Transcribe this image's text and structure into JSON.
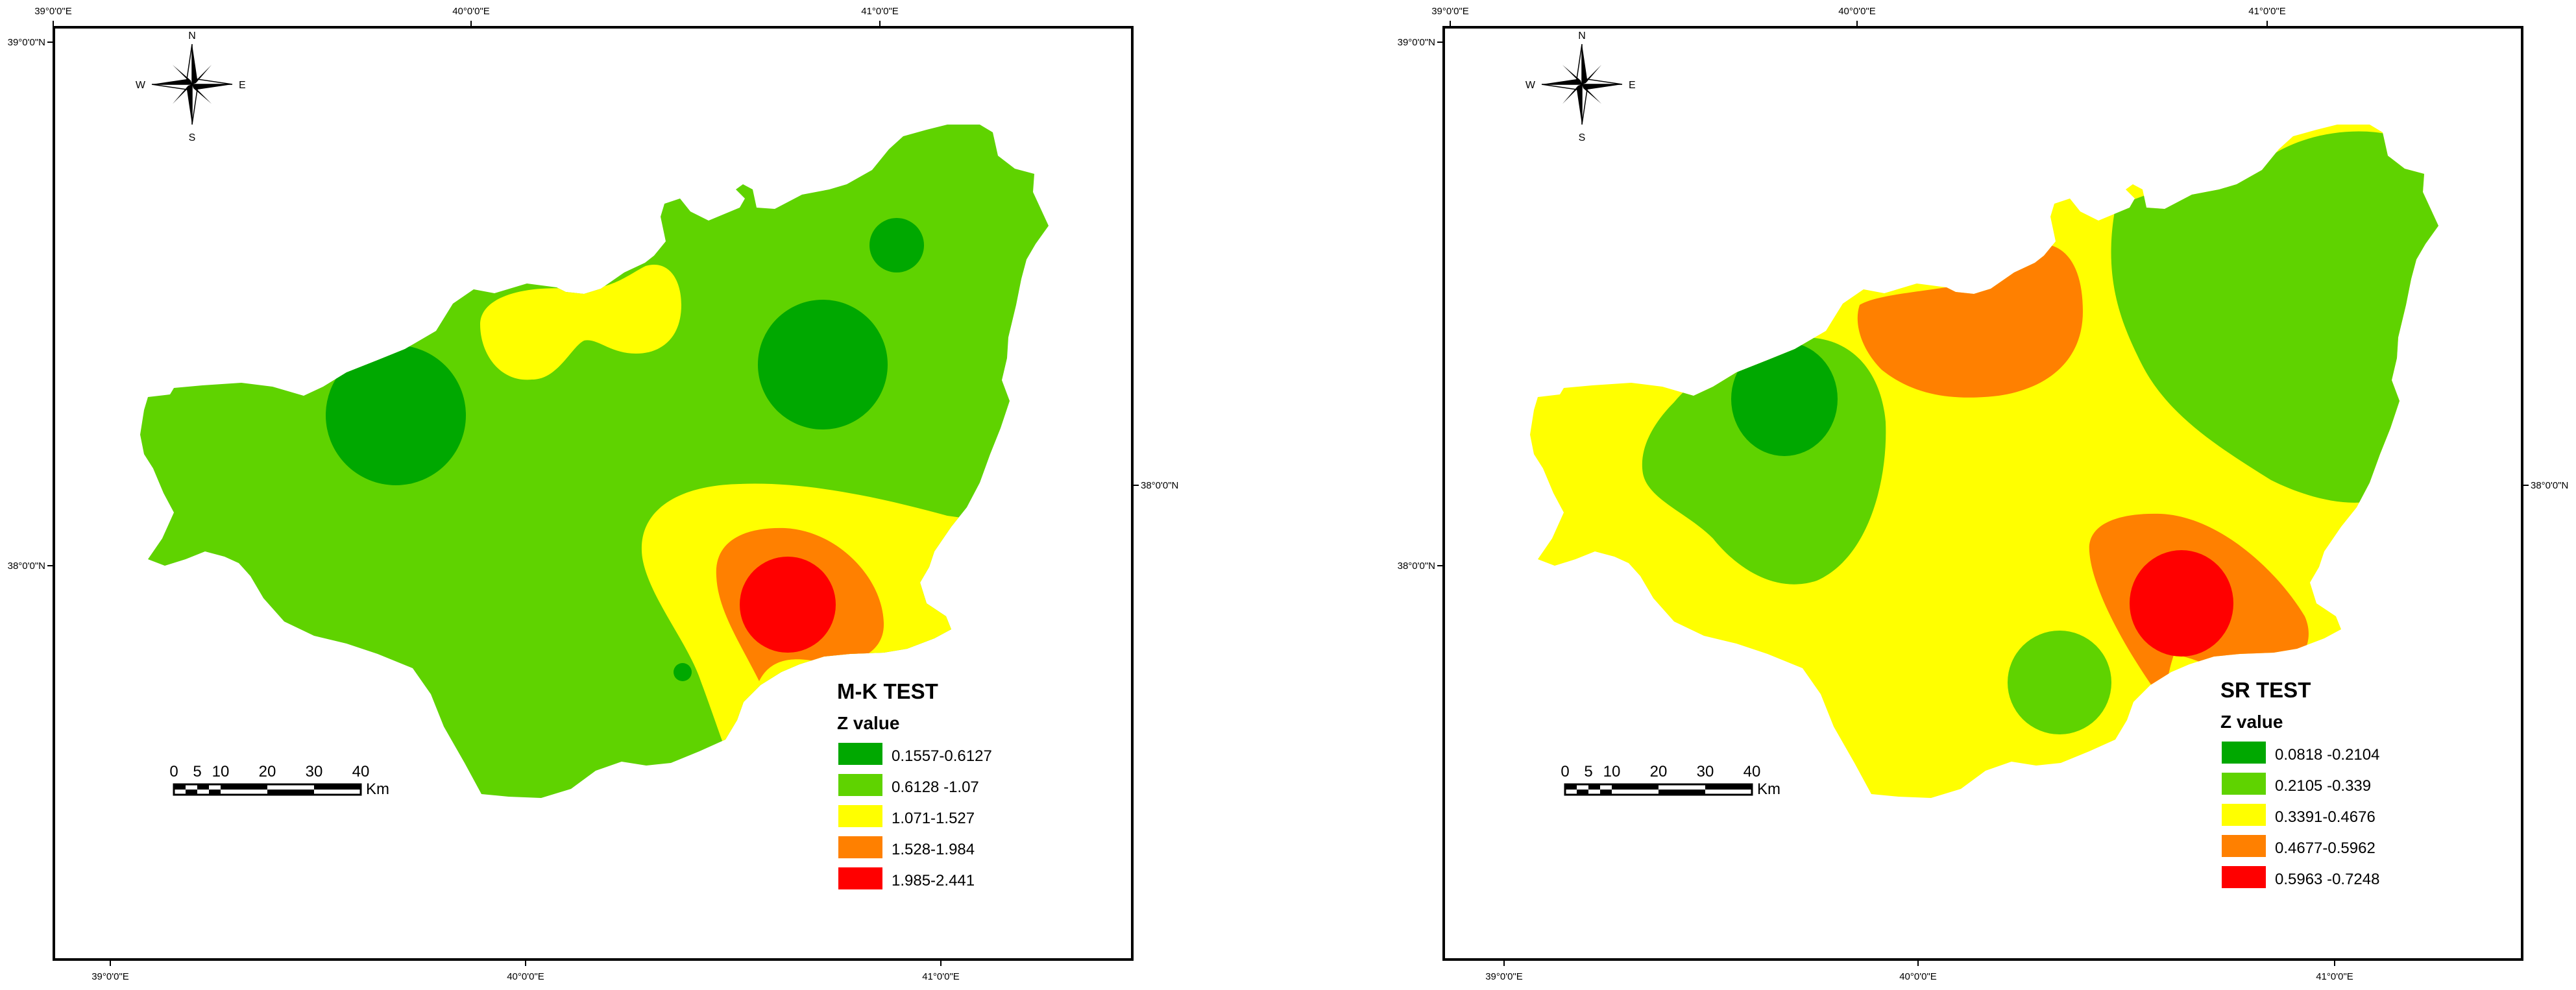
{
  "colors": {
    "dark_green": "#00a800",
    "green": "#5fd300",
    "yellow": "#ffff00",
    "orange": "#ff8000",
    "red": "#ff0000",
    "frame": "#000000"
  },
  "coordinates": {
    "lon_39": "39°0'0\"E",
    "lon_40": "40°0'0\"E",
    "lon_41": "41°0'0\"E",
    "lat_39": "39°0'0\"N",
    "lat_38": "38°0'0\"N"
  },
  "compass": {
    "n": "N",
    "s": "S",
    "e": "E",
    "w": "W"
  },
  "scale_bar": {
    "ticks": [
      "0",
      "5",
      "10",
      "20",
      "30",
      "40"
    ],
    "unit": "Km"
  },
  "maps": [
    {
      "title": "M-K TEST",
      "legend_heading": "Z value",
      "classes": [
        {
          "label": "0.1557-0.6127",
          "color": "#00a800"
        },
        {
          "label": "0.6128 -1.07",
          "color": "#5fd300"
        },
        {
          "label": "1.071-1.527",
          "color": "#ffff00"
        },
        {
          "label": "1.528-1.984",
          "color": "#ff8000"
        },
        {
          "label": "1.985-2.441",
          "color": "#ff0000"
        }
      ]
    },
    {
      "title": "SR TEST",
      "legend_heading": "Z value",
      "classes": [
        {
          "label": "0.0818 -0.2104",
          "color": "#00a800"
        },
        {
          "label": "0.2105 -0.339",
          "color": "#5fd300"
        },
        {
          "label": "0.3391-0.4676",
          "color": "#ffff00"
        },
        {
          "label": "0.4677-0.5962",
          "color": "#ff8000"
        },
        {
          "label": "0.5963 -0.7248",
          "color": "#ff0000"
        }
      ]
    }
  ]
}
